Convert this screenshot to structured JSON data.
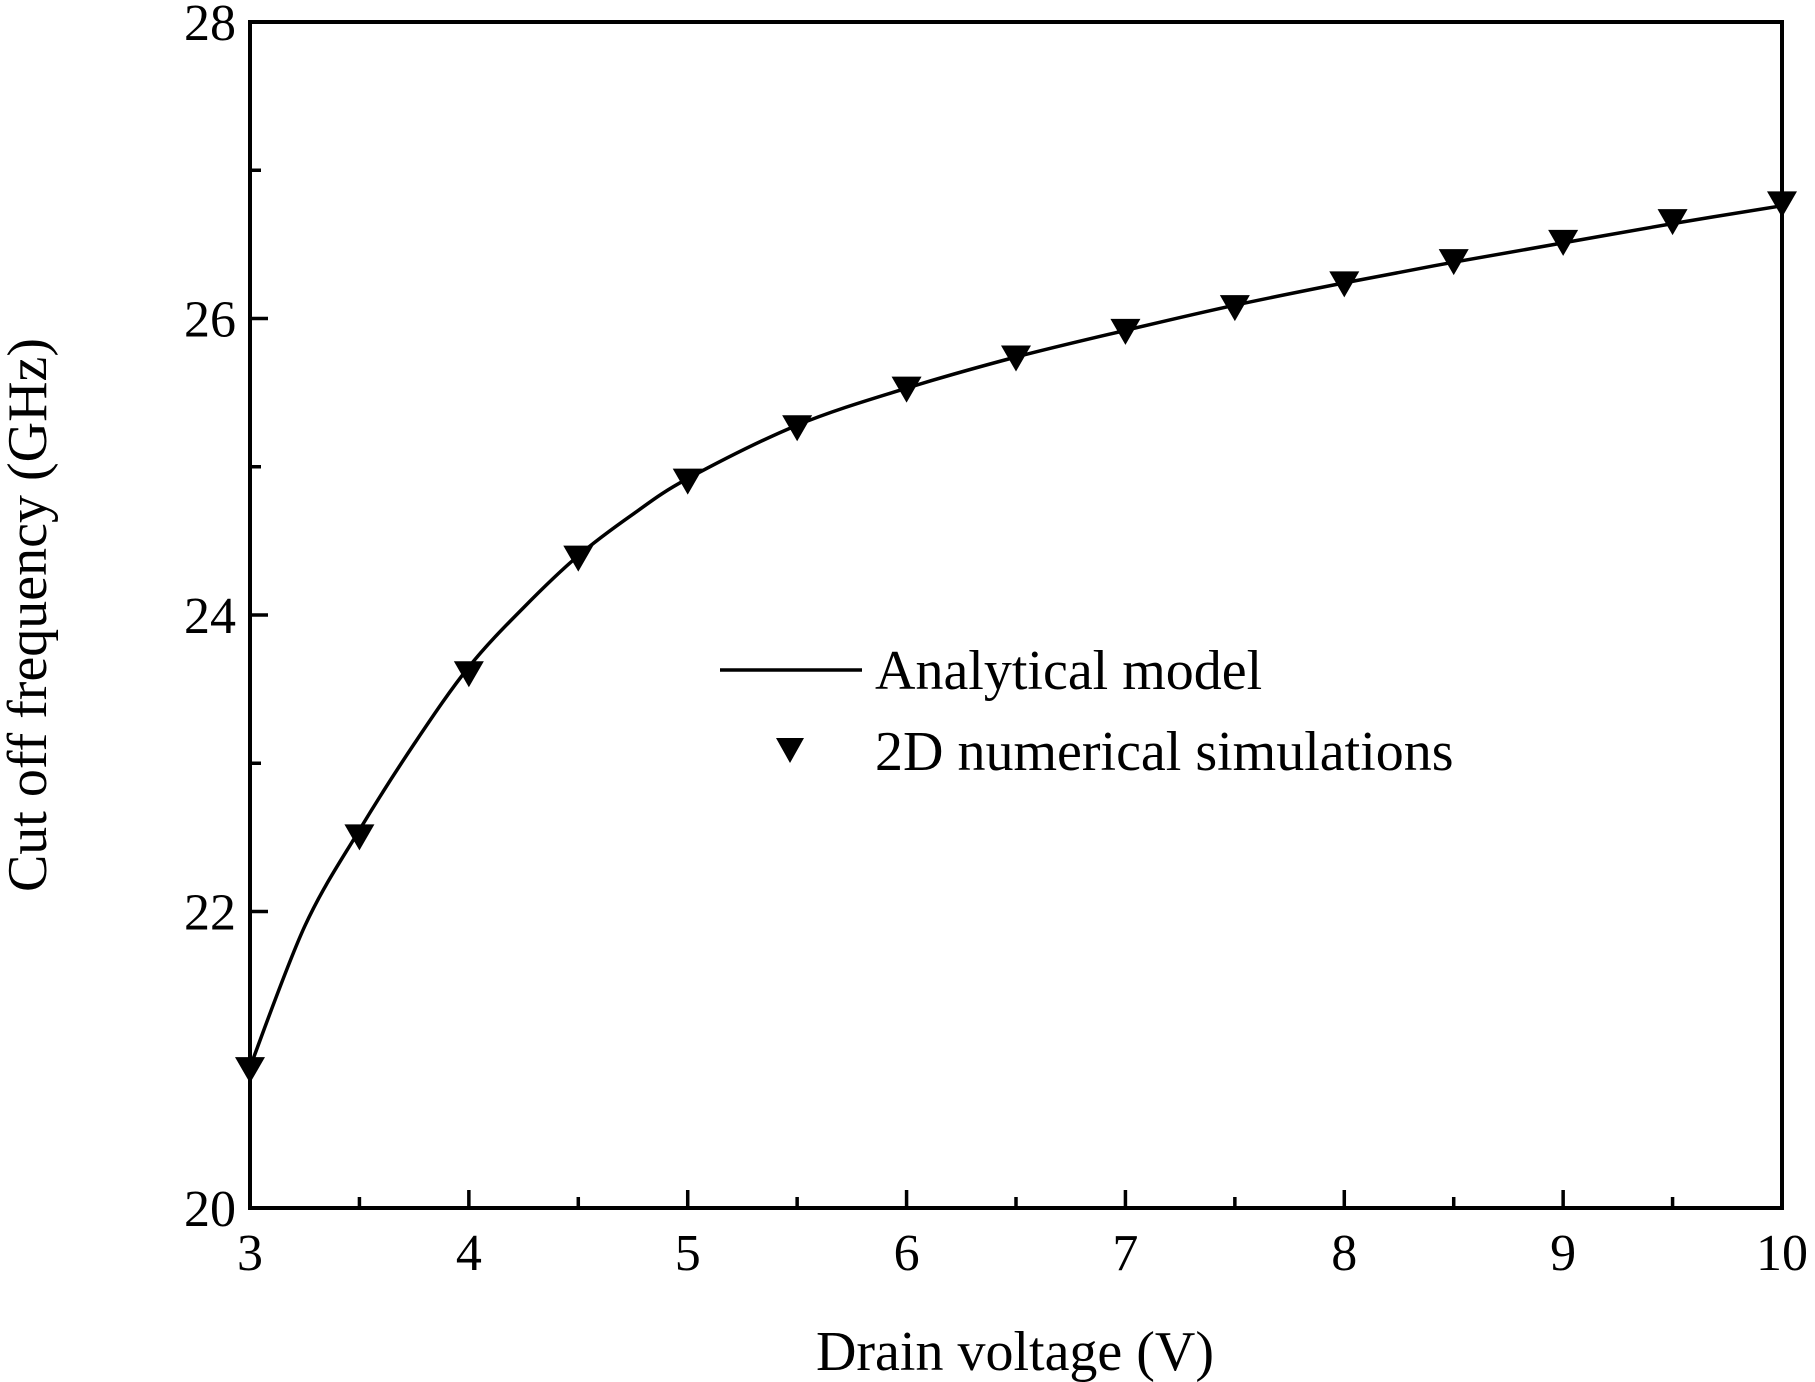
{
  "chart_data": {
    "type": "line",
    "title": "",
    "xlabel": "Drain voltage (V)",
    "ylabel": "Cut off frequency (GHz)",
    "xlim": [
      3,
      10
    ],
    "ylim": [
      20,
      28
    ],
    "xticks": [
      3,
      4,
      5,
      6,
      7,
      8,
      9,
      10
    ],
    "xtick_labels": [
      "3",
      "4",
      "5",
      "6",
      "7",
      "8",
      "9",
      "10"
    ],
    "yticks": [
      20,
      22,
      24,
      26,
      28
    ],
    "ytick_labels": [
      "20",
      "22",
      "24",
      "26",
      "28"
    ],
    "grid": false,
    "legend_position": "center-right",
    "series": [
      {
        "name": "Analytical model",
        "style": "line",
        "color": "#000000",
        "x": [
          3,
          3.25,
          3.5,
          3.75,
          4,
          4.25,
          4.5,
          4.75,
          5,
          5.5,
          6,
          6.5,
          7,
          7.5,
          8,
          8.5,
          9,
          9.5,
          10
        ],
        "y": [
          20.95,
          21.9,
          22.55,
          23.13,
          23.65,
          24.05,
          24.4,
          24.68,
          24.92,
          25.28,
          25.53,
          25.74,
          25.92,
          26.09,
          26.24,
          26.38,
          26.51,
          26.64,
          26.76
        ]
      },
      {
        "name": "2D numerical simulations",
        "style": "marker",
        "marker": "down-triangle",
        "color": "#000000",
        "x": [
          3,
          3.5,
          4,
          4.5,
          5,
          5.5,
          6,
          6.5,
          7,
          7.5,
          8,
          8.5,
          9,
          9.5,
          10
        ],
        "y": [
          20.93,
          22.5,
          23.6,
          24.38,
          24.9,
          25.26,
          25.52,
          25.73,
          25.91,
          26.07,
          26.23,
          26.38,
          26.51,
          26.65,
          26.77
        ]
      }
    ]
  }
}
